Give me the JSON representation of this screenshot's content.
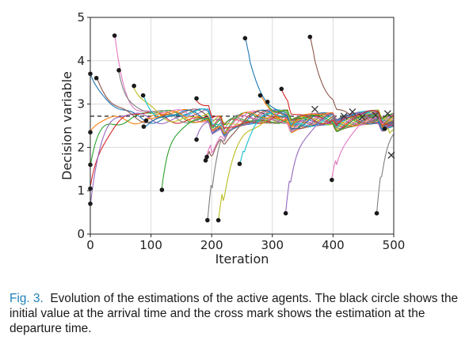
{
  "caption": {
    "label": "Fig. 3.",
    "text": "Evolution of the estimations of the active agents. The black circle shows the initial value at the arrival time and the cross mark shows the estimation at the departure time."
  },
  "chart_data": {
    "type": "line",
    "title": "",
    "xlabel": "Iteration",
    "ylabel": "Decision variable",
    "xlim": [
      0,
      500
    ],
    "ylim": [
      0,
      5
    ],
    "xticks": [
      0,
      100,
      200,
      300,
      400,
      500
    ],
    "yticks": [
      0,
      1,
      2,
      3,
      4,
      5
    ],
    "grid": true,
    "legend": "none",
    "reference_line": {
      "y": 2.72,
      "style": "dashed",
      "color": "#000000"
    },
    "settle_value": 2.72,
    "colors": [
      "#1f77b4",
      "#ff7f0e",
      "#2ca02c",
      "#d62728",
      "#9467bd",
      "#8c564b",
      "#e377c2",
      "#7f7f7f",
      "#bcbd22",
      "#17becf"
    ],
    "series": [
      {
        "arrival": 0,
        "initial": 3.7,
        "departure": null
      },
      {
        "arrival": 0,
        "initial": 2.35,
        "departure": null
      },
      {
        "arrival": 0,
        "initial": 1.6,
        "departure": null
      },
      {
        "arrival": 0,
        "initial": 1.05,
        "departure": null
      },
      {
        "arrival": 0,
        "initial": 0.7,
        "departure": null
      },
      {
        "arrival": 10,
        "initial": 3.6,
        "departure": null
      },
      {
        "arrival": 40,
        "initial": 4.58,
        "departure": null
      },
      {
        "arrival": 47,
        "initial": 3.78,
        "departure": null
      },
      {
        "arrival": 72,
        "initial": 3.42,
        "departure": null
      },
      {
        "arrival": 87,
        "initial": 3.2,
        "departure": null
      },
      {
        "arrival": 88,
        "initial": 2.48,
        "departure": null
      },
      {
        "arrival": 92,
        "initial": 2.62,
        "departure": null
      },
      {
        "arrival": 118,
        "initial": 1.02,
        "departure": null
      },
      {
        "arrival": 175,
        "initial": 3.13,
        "departure": null
      },
      {
        "arrival": 175,
        "initial": 2.18,
        "departure": null
      },
      {
        "arrival": 190,
        "initial": 1.7,
        "departure": null
      },
      {
        "arrival": 192,
        "initial": 1.78,
        "departure": null
      },
      {
        "arrival": 193,
        "initial": 0.32,
        "departure": null
      },
      {
        "arrival": 211,
        "initial": 0.32,
        "departure": null
      },
      {
        "arrival": 246,
        "initial": 1.62,
        "departure": null
      },
      {
        "arrival": 255,
        "initial": 4.52,
        "departure": null
      },
      {
        "arrival": 280,
        "initial": 3.2,
        "departure": null
      },
      {
        "arrival": 292,
        "initial": 3.05,
        "departure": null
      },
      {
        "arrival": 315,
        "initial": 3.35,
        "departure": null
      },
      {
        "arrival": 322,
        "initial": 0.48,
        "departure": null
      },
      {
        "arrival": 362,
        "initial": 4.55,
        "departure": null
      },
      {
        "arrival": 398,
        "initial": 1.25,
        "departure": null
      },
      {
        "arrival": 472,
        "initial": 0.48,
        "departure": null
      },
      {
        "arrival": 485,
        "initial": 2.43,
        "departure": null
      }
    ],
    "departures": [
      {
        "x": 370,
        "y": 2.88
      },
      {
        "x": 418,
        "y": 2.72
      },
      {
        "x": 432,
        "y": 2.82
      },
      {
        "x": 448,
        "y": 2.7
      },
      {
        "x": 470,
        "y": 2.74
      },
      {
        "x": 490,
        "y": 2.78
      },
      {
        "x": 496,
        "y": 1.82
      }
    ]
  }
}
